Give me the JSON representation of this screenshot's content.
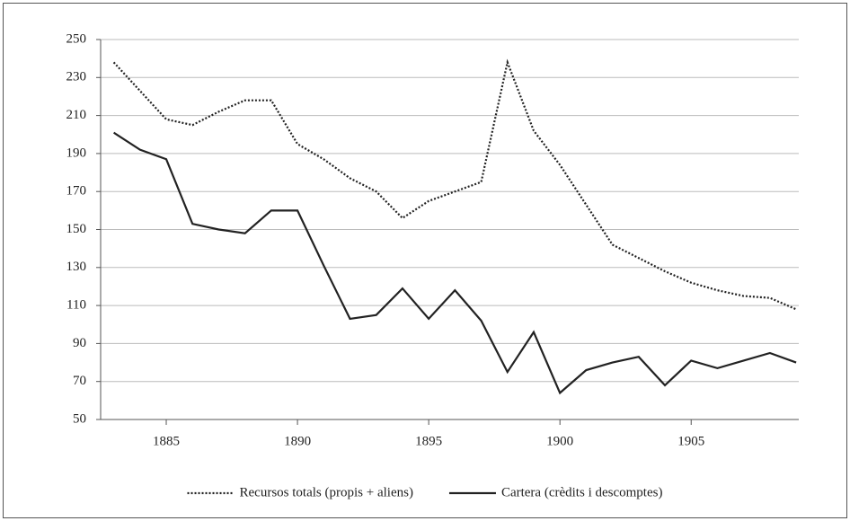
{
  "chart_data": {
    "type": "line",
    "x": [
      1883,
      1884,
      1885,
      1886,
      1887,
      1888,
      1889,
      1890,
      1891,
      1892,
      1893,
      1894,
      1895,
      1896,
      1897,
      1898,
      1899,
      1900,
      1901,
      1902,
      1903,
      1904,
      1905,
      1906,
      1907,
      1908,
      1909
    ],
    "series": [
      {
        "name": "Recursos totals (propis + aliens)",
        "color": "#222222",
        "style": "dotted",
        "values": [
          238,
          223,
          208,
          205,
          212,
          218,
          218,
          195,
          187,
          177,
          170,
          156,
          165,
          170,
          175,
          238,
          202,
          184,
          163,
          142,
          135,
          128,
          122,
          118,
          115,
          114,
          108
        ]
      },
      {
        "name": "Cartera (crèdits i descomptes)",
        "color": "#222222",
        "style": "solid",
        "values": [
          201,
          192,
          187,
          153,
          150,
          148,
          160,
          160,
          131,
          103,
          105,
          119,
          103,
          118,
          102,
          75,
          96,
          64,
          76,
          80,
          83,
          68,
          81,
          77,
          81,
          85,
          80
        ]
      }
    ],
    "xlim": [
      1882.5,
      1909.1
    ],
    "xticks": [
      1885,
      1890,
      1895,
      1900,
      1905
    ],
    "ylim": [
      50,
      250
    ],
    "yticks": [
      50,
      70,
      90,
      110,
      130,
      150,
      170,
      190,
      210,
      230,
      250
    ],
    "grid": true,
    "legend": "bottom"
  }
}
